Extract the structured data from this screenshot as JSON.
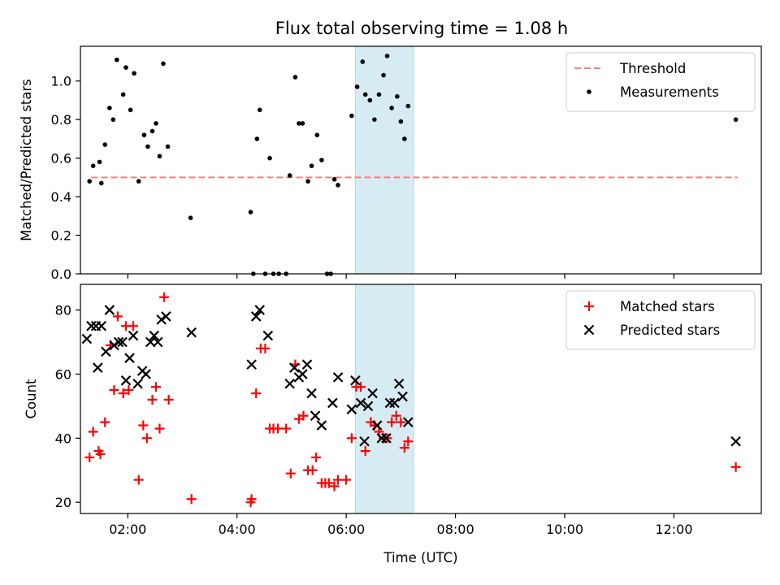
{
  "title": "Flux total observing time = 1.08 h",
  "chart_data": [
    {
      "type": "scatter",
      "panel": "top",
      "ylabel": "Matched/Predicted stars",
      "xlim": [
        "01:08",
        "13:36"
      ],
      "ylim": [
        0,
        1.18
      ],
      "yticks": [
        "0.0",
        "0.2",
        "0.4",
        "0.6",
        "0.8",
        "1.0"
      ],
      "highlight_span": [
        "06:10",
        "07:14"
      ],
      "legend_position": "top-right",
      "threshold": {
        "name": "Threshold",
        "y": 0.5,
        "x_range": [
          "01:20",
          "13:10"
        ],
        "color": "#f08080"
      },
      "series": [
        {
          "name": "Measurements",
          "color": "#000000",
          "points": [
            [
              "01:18",
              0.48
            ],
            [
              "01:22",
              0.56
            ],
            [
              "01:29",
              0.58
            ],
            [
              "01:31",
              0.47
            ],
            [
              "01:35",
              0.67
            ],
            [
              "01:40",
              0.86
            ],
            [
              "01:44",
              0.8
            ],
            [
              "01:48",
              1.11
            ],
            [
              "01:55",
              0.93
            ],
            [
              "01:58",
              1.07
            ],
            [
              "02:03",
              0.85
            ],
            [
              "02:07",
              1.04
            ],
            [
              "02:12",
              0.48
            ],
            [
              "02:18",
              0.72
            ],
            [
              "02:22",
              0.66
            ],
            [
              "02:27",
              0.74
            ],
            [
              "02:31",
              0.78
            ],
            [
              "02:35",
              0.61
            ],
            [
              "02:39",
              1.09
            ],
            [
              "02:44",
              0.66
            ],
            [
              "03:09",
              0.29
            ],
            [
              "04:15",
              0.32
            ],
            [
              "04:18",
              0.0
            ],
            [
              "04:22",
              0.7
            ],
            [
              "04:25",
              0.85
            ],
            [
              "04:31",
              0.0
            ],
            [
              "04:36",
              0.6
            ],
            [
              "04:40",
              0.0
            ],
            [
              "04:46",
              0.0
            ],
            [
              "04:54",
              0.0
            ],
            [
              "04:58",
              0.51
            ],
            [
              "05:04",
              1.02
            ],
            [
              "05:08",
              0.78
            ],
            [
              "05:12",
              0.78
            ],
            [
              "05:18",
              0.48
            ],
            [
              "05:22",
              0.56
            ],
            [
              "05:28",
              0.72
            ],
            [
              "05:33",
              0.59
            ],
            [
              "05:39",
              0.0
            ],
            [
              "05:43",
              0.0
            ],
            [
              "05:47",
              0.49
            ],
            [
              "05:51",
              0.46
            ],
            [
              "06:06",
              0.82
            ],
            [
              "06:12",
              0.97
            ],
            [
              "06:18",
              1.1
            ],
            [
              "06:21",
              0.93
            ],
            [
              "06:26",
              0.9
            ],
            [
              "06:31",
              0.8
            ],
            [
              "06:36",
              0.93
            ],
            [
              "06:41",
              1.03
            ],
            [
              "06:45",
              1.13
            ],
            [
              "06:50",
              0.86
            ],
            [
              "06:56",
              0.92
            ],
            [
              "07:00",
              0.79
            ],
            [
              "07:04",
              0.7
            ],
            [
              "07:08",
              0.87
            ],
            [
              "13:08",
              0.8
            ]
          ]
        }
      ]
    },
    {
      "type": "scatter",
      "panel": "bottom",
      "xlabel": "Time (UTC)",
      "ylabel": "Count",
      "xlim": [
        "01:08",
        "13:36"
      ],
      "ylim": [
        16.5,
        88
      ],
      "yticks": [
        "20",
        "40",
        "60",
        "80"
      ],
      "xticks": [
        "02:00",
        "04:00",
        "06:00",
        "08:00",
        "10:00",
        "12:00"
      ],
      "highlight_span": [
        "06:10",
        "07:14"
      ],
      "legend_position": "top-right",
      "series": [
        {
          "name": "Matched stars",
          "color": "#ff0000",
          "marker": "plus",
          "points": [
            [
              "01:18",
              34
            ],
            [
              "01:22",
              42
            ],
            [
              "01:28",
              36
            ],
            [
              "01:30",
              35
            ],
            [
              "01:35",
              45
            ],
            [
              "01:41",
              69
            ],
            [
              "01:45",
              55
            ],
            [
              "01:49",
              78
            ],
            [
              "01:55",
              54
            ],
            [
              "01:58",
              75
            ],
            [
              "02:01",
              55
            ],
            [
              "02:06",
              75
            ],
            [
              "02:12",
              27
            ],
            [
              "02:17",
              44
            ],
            [
              "02:21",
              40
            ],
            [
              "02:27",
              52
            ],
            [
              "02:31",
              56
            ],
            [
              "02:35",
              43
            ],
            [
              "02:40",
              84
            ],
            [
              "02:45",
              52
            ],
            [
              "03:10",
              21
            ],
            [
              "04:15",
              20
            ],
            [
              "04:16",
              21
            ],
            [
              "04:21",
              54
            ],
            [
              "04:26",
              68
            ],
            [
              "04:31",
              68
            ],
            [
              "04:36",
              43
            ],
            [
              "04:40",
              43
            ],
            [
              "04:45",
              43
            ],
            [
              "04:54",
              43
            ],
            [
              "04:59",
              29
            ],
            [
              "05:04",
              63
            ],
            [
              "05:08",
              46
            ],
            [
              "05:13",
              47
            ],
            [
              "05:18",
              30
            ],
            [
              "05:23",
              30
            ],
            [
              "05:27",
              34
            ],
            [
              "05:33",
              26
            ],
            [
              "05:37",
              26
            ],
            [
              "05:41",
              26
            ],
            [
              "05:47",
              25
            ],
            [
              "05:51",
              27
            ],
            [
              "06:00",
              27
            ],
            [
              "06:06",
              40
            ],
            [
              "06:11",
              56
            ],
            [
              "06:16",
              56
            ],
            [
              "06:21",
              36
            ],
            [
              "06:27",
              45
            ],
            [
              "06:31",
              44
            ],
            [
              "06:36",
              42
            ],
            [
              "06:41",
              40
            ],
            [
              "06:45",
              40
            ],
            [
              "06:50",
              45
            ],
            [
              "06:55",
              47
            ],
            [
              "07:00",
              45
            ],
            [
              "07:04",
              37
            ],
            [
              "07:08",
              39
            ],
            [
              "13:08",
              31
            ]
          ]
        },
        {
          "name": "Predicted stars",
          "color": "#000000",
          "marker": "x",
          "points": [
            [
              "01:15",
              71
            ],
            [
              "01:20",
              75
            ],
            [
              "01:25",
              75
            ],
            [
              "01:27",
              62
            ],
            [
              "01:31",
              75
            ],
            [
              "01:36",
              67
            ],
            [
              "01:40",
              80
            ],
            [
              "01:45",
              69
            ],
            [
              "01:50",
              70
            ],
            [
              "01:54",
              70
            ],
            [
              "01:58",
              58
            ],
            [
              "02:02",
              65
            ],
            [
              "02:06",
              72
            ],
            [
              "02:11",
              57
            ],
            [
              "02:16",
              61
            ],
            [
              "02:20",
              60
            ],
            [
              "02:25",
              70
            ],
            [
              "02:29",
              72
            ],
            [
              "02:33",
              70
            ],
            [
              "02:37",
              77
            ],
            [
              "02:42",
              78
            ],
            [
              "03:10",
              73
            ],
            [
              "04:16",
              63
            ],
            [
              "04:21",
              78
            ],
            [
              "04:25",
              80
            ],
            [
              "04:34",
              72
            ],
            [
              "04:58",
              57
            ],
            [
              "05:03",
              62
            ],
            [
              "05:08",
              59
            ],
            [
              "05:12",
              60
            ],
            [
              "05:17",
              63
            ],
            [
              "05:22",
              54
            ],
            [
              "05:26",
              47
            ],
            [
              "05:33",
              44
            ],
            [
              "05:45",
              51
            ],
            [
              "05:51",
              59
            ],
            [
              "06:06",
              49
            ],
            [
              "06:10",
              58
            ],
            [
              "06:16",
              51
            ],
            [
              "06:20",
              39
            ],
            [
              "06:24",
              50
            ],
            [
              "06:29",
              54
            ],
            [
              "06:34",
              44
            ],
            [
              "06:39",
              40
            ],
            [
              "06:44",
              40
            ],
            [
              "06:48",
              51
            ],
            [
              "06:53",
              51
            ],
            [
              "06:58",
              57
            ],
            [
              "07:02",
              53
            ],
            [
              "07:08",
              45
            ],
            [
              "13:08",
              39
            ]
          ]
        }
      ]
    }
  ]
}
